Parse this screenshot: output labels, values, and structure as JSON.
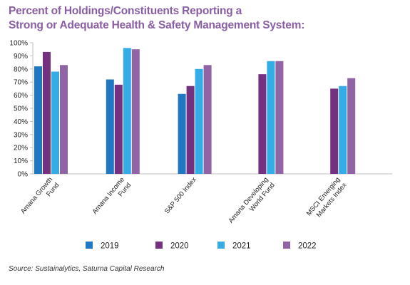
{
  "chart_data": {
    "type": "bar",
    "title_lines": [
      "Percent of Holdings/Constituents Reporting a",
      "Strong or Adequate Health & Safety Management System:"
    ],
    "categories": [
      [
        "Amana Growth",
        "Fund"
      ],
      [
        "Amana Income",
        "Fund"
      ],
      [
        "S&P 500 Index"
      ],
      [
        "Amana Developing",
        "World Fund"
      ],
      [
        "MSCI Emerging",
        "Markets Index"
      ]
    ],
    "series": [
      {
        "name": "2019",
        "color": "#1f78c1",
        "values": [
          82,
          72,
          61,
          null,
          null
        ]
      },
      {
        "name": "2020",
        "color": "#74317f",
        "values": [
          93,
          68,
          67,
          76,
          65
        ]
      },
      {
        "name": "2021",
        "color": "#34ade6",
        "values": [
          78,
          96,
          80,
          86,
          67
        ]
      },
      {
        "name": "2022",
        "color": "#9064a5",
        "values": [
          83,
          95,
          83,
          86,
          73
        ]
      }
    ],
    "y_ticks": [
      "0%",
      "10%",
      "20%",
      "30%",
      "40%",
      "50%",
      "60%",
      "70%",
      "80%",
      "90%",
      "100%"
    ],
    "ylim": [
      0,
      100
    ],
    "grid": false,
    "legend_position": "bottom",
    "colors": {
      "title": "#8a5ea3",
      "axis": "#bfbfbf",
      "text": "#222222"
    },
    "source": "Source: Sustainalytics, Saturna Capital Research"
  }
}
